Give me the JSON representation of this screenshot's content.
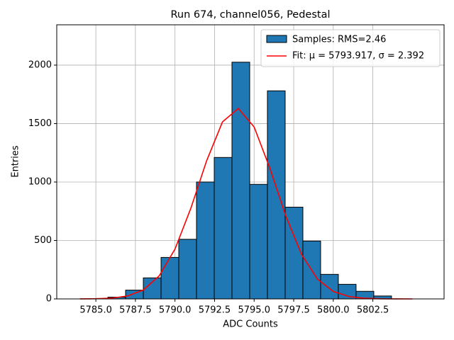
{
  "chart_data": {
    "type": "histogram",
    "title": "Run 674, channel056, Pedestal",
    "xlabel": "ADC Counts",
    "ylabel": "Entries",
    "name": "Samples: RMS=2.46",
    "color": "#1f77b4",
    "bins": [
      5785.76,
      5786.88,
      5788.0,
      5789.12,
      5790.24,
      5791.36,
      5792.48,
      5793.6,
      5794.72,
      5795.84,
      5796.96,
      5798.08,
      5799.2,
      5800.32,
      5801.44,
      5802.56,
      5803.68
    ],
    "values": [
      15,
      75,
      180,
      355,
      510,
      1000,
      1210,
      2025,
      980,
      1780,
      785,
      495,
      210,
      125,
      65,
      25
    ],
    "overlay": {
      "type": "line",
      "name": "Fit: μ = 5793.917, σ = 2.392",
      "color": "#ff0000",
      "x": [
        5784,
        5785,
        5786,
        5787,
        5788,
        5789,
        5790,
        5791,
        5792,
        5793,
        5794,
        5795,
        5796,
        5797,
        5798,
        5799,
        5800,
        5801,
        5802,
        5803,
        5804,
        5805
      ],
      "values": [
        0.3,
        1.6,
        6.8,
        24.9,
        76.4,
        197,
        426,
        775,
        1182,
        1514,
        1629,
        1471,
        1116,
        710,
        380,
        170,
        64,
        20.3,
        5.4,
        1.2,
        0.2,
        0.04
      ]
    },
    "xlim": [
      5782.53,
      5807.0
    ],
    "ylim": [
      0,
      2345
    ],
    "xticks": [
      {
        "value": 5785,
        "label": "5785.0"
      },
      5787.5,
      {
        "value": 5790,
        "label": "5790.0"
      },
      5792.5,
      {
        "value": 5795,
        "label": "5795.0"
      },
      5797.5,
      {
        "value": 5800,
        "label": "5800.0"
      },
      5802.5
    ],
    "yticks": [
      0,
      500,
      1000,
      1500,
      2000
    ],
    "grid": true,
    "legend": "upper right"
  }
}
